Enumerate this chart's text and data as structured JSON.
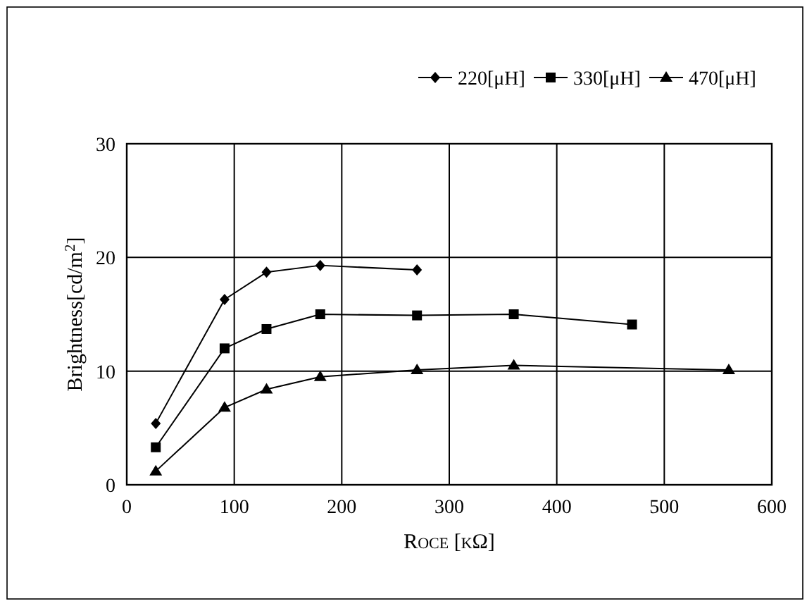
{
  "chart_data": {
    "type": "line",
    "xlabel": "Roce [kΩ]",
    "ylabel": "Brightness[cd/m$^{2}$]",
    "xlim": [
      0,
      600
    ],
    "xticks": [
      0,
      100,
      200,
      300,
      400,
      500,
      600
    ],
    "ylim": [
      0,
      30
    ],
    "yticks": [
      0,
      10,
      20,
      30
    ],
    "grid": true,
    "legend": "top right",
    "series": [
      {
        "name": "220[μH]",
        "color": "#000000",
        "marker": "diamond",
        "x": [
          27,
          91,
          130,
          180,
          270
        ],
        "values": [
          5.4,
          16.3,
          18.7,
          19.3,
          18.9
        ]
      },
      {
        "name": "330[μH]",
        "color": "#000000",
        "marker": "square",
        "x": [
          27,
          91,
          130,
          180,
          270,
          360,
          470
        ],
        "values": [
          3.3,
          12.0,
          13.7,
          15.0,
          14.9,
          15.0,
          14.1
        ]
      },
      {
        "name": "470[μH]",
        "color": "#000000",
        "marker": "triangle",
        "x": [
          27,
          91,
          130,
          180,
          270,
          360,
          560
        ],
        "values": [
          1.2,
          6.8,
          8.4,
          9.5,
          10.1,
          10.5,
          10.1
        ]
      }
    ]
  }
}
